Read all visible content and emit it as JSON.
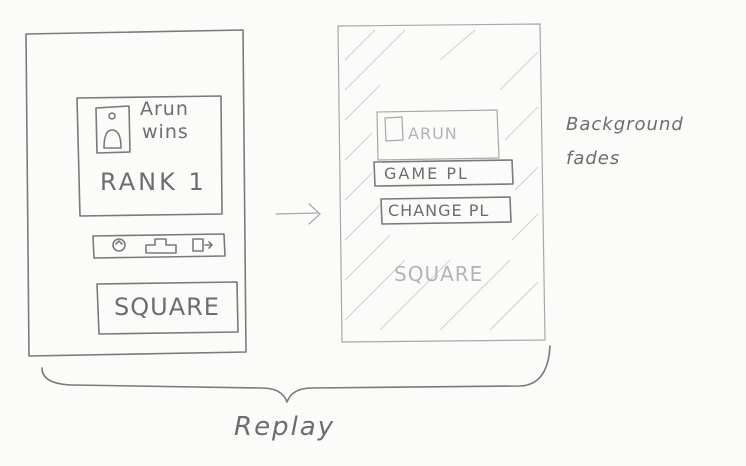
{
  "left_screen": {
    "player_name_line1": "Arun",
    "player_name_line2": "wins",
    "rank_text": "RANK 1",
    "controls_icons": [
      "replay-icon",
      "leaderboard-icon",
      "share-icon"
    ],
    "square_button_label": "SQUARE"
  },
  "right_screen": {
    "player_name": "ARUN",
    "game_button_label": "GAME PL",
    "change_button_label": "CHANGE PL",
    "square_label": "SQUARE"
  },
  "annotation": "Background fades",
  "caption": "Replay"
}
